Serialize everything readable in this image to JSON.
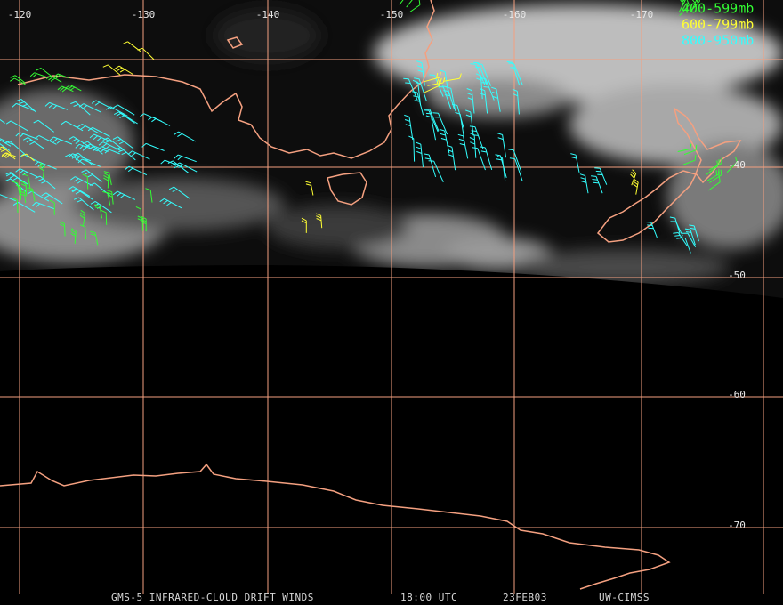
{
  "map": {
    "longitude_labels": [
      "-120",
      "-130",
      "-140",
      "-150",
      "-160",
      "-170"
    ],
    "latitude_labels": [
      "-40",
      "-50",
      "-60",
      "-70"
    ],
    "legend": [
      {
        "label": "400-599mb",
        "color": "#33ff33"
      },
      {
        "label": "600-799mb",
        "color": "#ffff33"
      },
      {
        "label": "800-950mb",
        "color": "#33ffff"
      }
    ],
    "footer": [
      "GMS-5 INFRARED-CLOUD DRIFT WINDS",
      "18:00 UTC",
      "23FEB03",
      "UW-CIMSS"
    ]
  }
}
